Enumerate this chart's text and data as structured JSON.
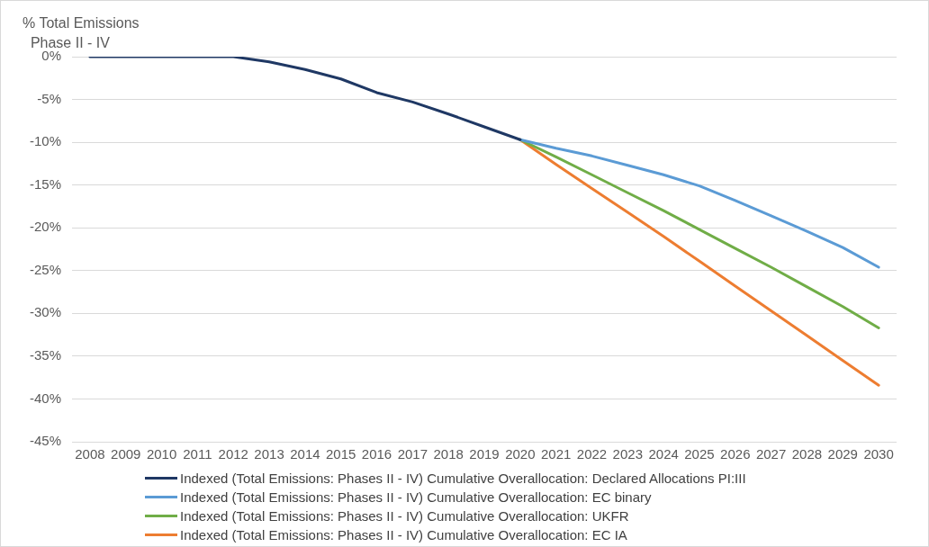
{
  "chart_data": {
    "type": "line",
    "ylabel": "% Total Emissions\n  Phase II - IV",
    "categories": [
      "2008",
      "2009",
      "2010",
      "2011",
      "2012",
      "2013",
      "2014",
      "2015",
      "2016",
      "2017",
      "2018",
      "2019",
      "2020",
      "2021",
      "2022",
      "2023",
      "2024",
      "2025",
      "2026",
      "2027",
      "2028",
      "2029",
      "2030"
    ],
    "series": [
      {
        "name": "Indexed (Total Emissions: Phases II - IV) Cumulative Overallocation: Declared Allocations PI:III",
        "color": "#1f3864",
        "values": [
          0,
          0,
          0,
          0,
          0,
          -0.6,
          -1.5,
          -2.6,
          -4.2,
          -5.3,
          -6.7,
          -8.2,
          -9.7,
          null,
          null,
          null,
          null,
          null,
          null,
          null,
          null,
          null,
          null
        ]
      },
      {
        "name": "Indexed (Total Emissions: Phases II - IV) Cumulative Overallocation: EC binary",
        "color": "#5b9bd5",
        "values": [
          null,
          null,
          null,
          null,
          null,
          null,
          null,
          null,
          null,
          null,
          null,
          null,
          -9.7,
          -10.7,
          -11.6,
          -12.7,
          -13.8,
          -15.1,
          -16.8,
          -18.6,
          -20.4,
          -22.3,
          -24.6
        ]
      },
      {
        "name": "Indexed (Total Emissions: Phases II - IV) Cumulative Overallocation: UKFR",
        "color": "#70ad47",
        "values": [
          null,
          null,
          null,
          null,
          null,
          null,
          null,
          null,
          null,
          null,
          null,
          null,
          -9.7,
          -11.7,
          -13.8,
          -15.9,
          -18.0,
          -20.2,
          -22.4,
          -24.6,
          -26.9,
          -29.2,
          -31.7
        ]
      },
      {
        "name": "Indexed (Total Emissions: Phases II - IV) Cumulative Overallocation: EC IA",
        "color": "#ed7d31",
        "values": [
          null,
          null,
          null,
          null,
          null,
          null,
          null,
          null,
          null,
          null,
          null,
          null,
          -9.7,
          -12.6,
          -15.4,
          -18.2,
          -21.0,
          -23.9,
          -26.8,
          -29.7,
          -32.6,
          -35.5,
          -38.4
        ]
      }
    ],
    "ylim": [
      -45,
      0
    ],
    "yticks": [
      {
        "value": 0,
        "label": "0%"
      },
      {
        "value": -5,
        "label": "-5%"
      },
      {
        "value": -10,
        "label": "-10%"
      },
      {
        "value": -15,
        "label": "-15%"
      },
      {
        "value": -20,
        "label": "-20%"
      },
      {
        "value": -25,
        "label": "-25%"
      },
      {
        "value": -30,
        "label": "-30%"
      },
      {
        "value": -35,
        "label": "-35%"
      },
      {
        "value": -40,
        "label": "-40%"
      },
      {
        "value": -45,
        "label": "-45%"
      }
    ],
    "grid": "y",
    "legend": "bottom",
    "marker": "none",
    "line_style": "solid"
  }
}
